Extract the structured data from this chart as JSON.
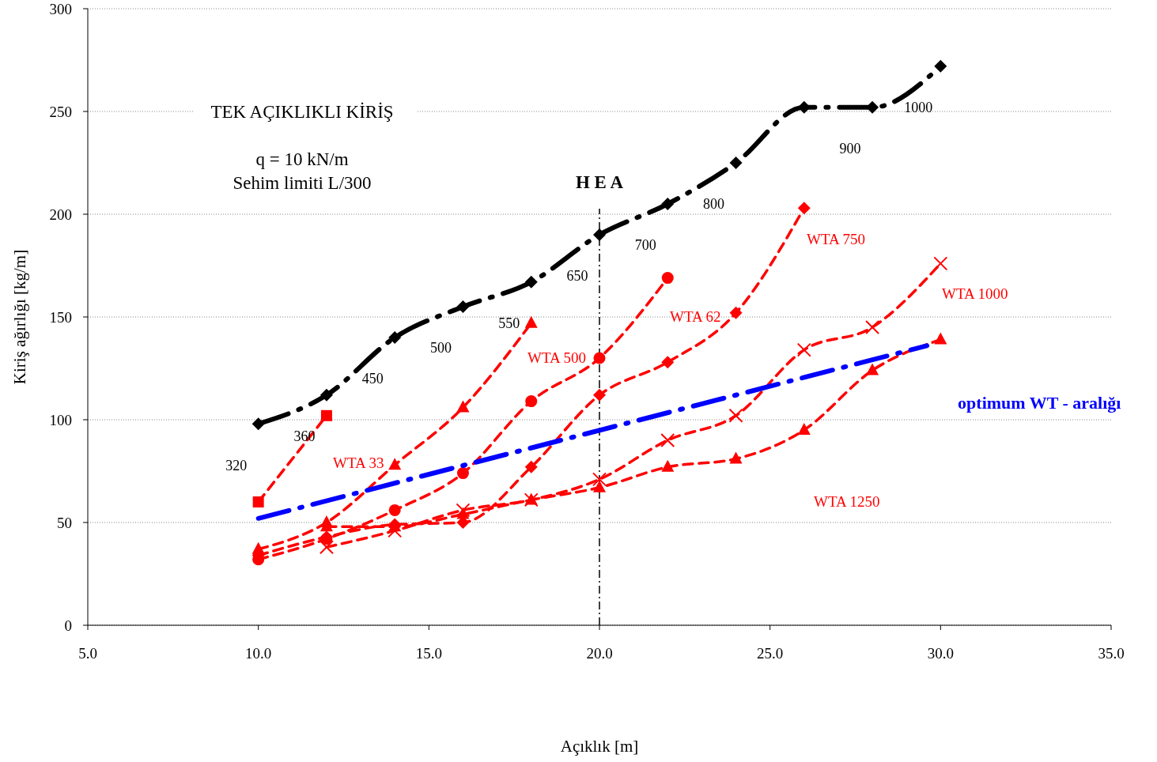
{
  "chart_data": {
    "type": "line",
    "title": "TEK AÇIKLIKLI KİRİŞ",
    "xlabel": "Açıklık [m]",
    "ylabel": "Kiriş ağırlığı [kg/m]",
    "xlim": [
      5,
      35
    ],
    "xticks": [
      {
        "value": 5,
        "label": "5.0"
      },
      {
        "value": 10,
        "label": "10.0"
      },
      {
        "value": 15,
        "label": "15.0"
      },
      {
        "value": 20,
        "label": "20.0"
      },
      {
        "value": 25,
        "label": "25.0"
      },
      {
        "value": 30,
        "label": "30.0"
      },
      {
        "value": 35,
        "label": "35.0"
      }
    ],
    "ylim": [
      0,
      300
    ],
    "yticks": [
      0,
      50,
      100,
      150,
      200,
      250,
      300
    ],
    "grid": "y",
    "line_style": "dashed",
    "series": [
      {
        "color": "#000000",
        "marker": "diamond",
        "x": [
          10,
          12,
          14,
          16,
          18,
          20,
          22,
          24,
          26,
          28,
          30
        ],
        "values": [
          98,
          112,
          140,
          155,
          167,
          190,
          205,
          225,
          252,
          252,
          272
        ]
      },
      {
        "color": "#ff0000",
        "marker": "square",
        "x": [
          10,
          12
        ],
        "values": [
          60,
          102
        ]
      },
      {
        "color": "#ff0000",
        "marker": "triangle",
        "x": [
          10,
          12,
          14,
          16,
          18
        ],
        "values": [
          37,
          50,
          78,
          106,
          147
        ]
      },
      {
        "color": "#ff0000",
        "marker": "circle",
        "x": [
          10,
          12,
          14,
          16,
          18,
          20,
          22
        ],
        "values": [
          32,
          42,
          56,
          74,
          109,
          130,
          169
        ]
      },
      {
        "color": "#ff0000",
        "marker": "diamond",
        "x": [
          10,
          12,
          14,
          16,
          18,
          20,
          22,
          24,
          26
        ],
        "values": [
          34,
          43,
          49,
          50,
          77,
          112,
          128,
          152,
          203
        ]
      },
      {
        "color": "#ff0000",
        "marker": "cross",
        "x": [
          12,
          14,
          16,
          18,
          20,
          22,
          24,
          26,
          28,
          30
        ],
        "values": [
          38,
          46,
          56,
          61,
          71,
          90,
          102,
          134,
          145,
          176
        ]
      },
      {
        "color": "#ff0000",
        "marker": "triangle",
        "x": [
          12,
          14,
          16,
          18,
          20,
          22,
          24,
          26,
          28,
          30
        ],
        "values": [
          48,
          48,
          54,
          61,
          67,
          77,
          81,
          95,
          124,
          139
        ]
      },
      {
        "name": "optimum WT - aralığı",
        "color": "#0000ff",
        "marker": "none",
        "x": [
          10,
          29.6
        ],
        "values": [
          52,
          136
        ]
      }
    ],
    "ref_lines": [
      {
        "axis": "x",
        "value": 20,
        "label": "H E A",
        "color": "#000000"
      }
    ],
    "annotations": [
      "q = 10 kN/m",
      "Sehim limiti   L/300",
      "WTA 33",
      "WTA 500",
      "WTA 62",
      "WTA 750",
      "WTA 1000",
      "WTA 1250",
      {
        "text": "320",
        "x": 10,
        "y": 98
      },
      {
        "text": "360",
        "x": 12,
        "y": 112
      },
      {
        "text": "450",
        "x": 14,
        "y": 140
      },
      {
        "text": "500",
        "x": 16,
        "y": 155
      },
      {
        "text": "550",
        "x": 18,
        "y": 167
      },
      {
        "text": "650",
        "x": 20,
        "y": 190
      },
      {
        "text": "700",
        "x": 22,
        "y": 205
      },
      {
        "text": "800",
        "x": 24,
        "y": 225
      },
      {
        "text": "900",
        "x": 28,
        "y": 252
      },
      {
        "text": "1000",
        "x": 30,
        "y": 272
      }
    ]
  }
}
